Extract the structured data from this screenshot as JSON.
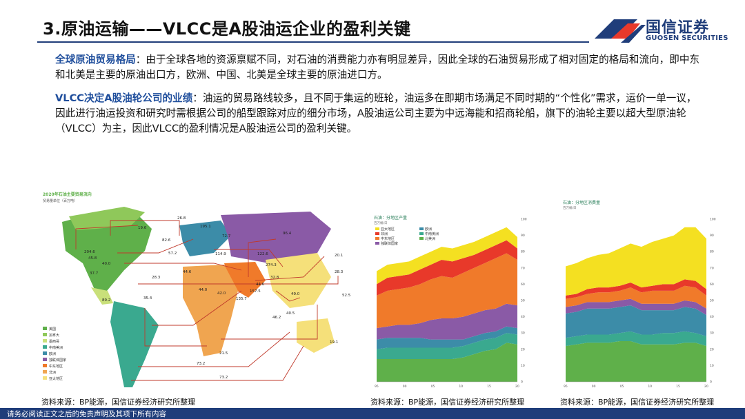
{
  "header": {
    "title": "3.原油运输——VLCC是A股油运企业的盈利关键",
    "logo_cn": "国信证券",
    "logo_en": "GUOSEN SECURITIES"
  },
  "paragraphs": [
    {
      "keyword": "全球原油贸易格局",
      "text": "：由于全球各地的资源禀赋不同，对石油的消费能力亦有明显差异，因此全球的石油贸易形成了相对固定的格局和流向，即中东和北美是主要的原油出口方，欧洲、中国、北美是全球主要的原油进口方。"
    },
    {
      "keyword": "VLCC决定A股油轮公司的业绩",
      "text": "：油运的贸易路线较多，且不同于集运的班轮，油运多在即期市场满足不同时期的“个性化”需求，运价一单一议，因此进行油运投资和研究时需根据公司的船型跟踪对应的细分市场，A股油运公司主要为中远海能和招商轮船，旗下的油轮主要以超大型原油轮（VLCC）为主，因此VLCC的盈利情况是A股油运公司的盈利关键。"
    }
  ],
  "map": {
    "title": "2020年石油主要贸易流向",
    "subtitle": "贸易量单位（百万吨）",
    "flows": [
      "26.8",
      "19.6",
      "195.1",
      "82.6",
      "72.7",
      "96.4",
      "204.6",
      "45.8",
      "40.0",
      "57.2",
      "114.9",
      "122.6",
      "20.1",
      "37.7",
      "44.6",
      "274.3",
      "28.3",
      "28.3",
      "44.6",
      "32.8",
      "89.2",
      "44.0",
      "42.0",
      "157.5",
      "49.0",
      "35.4",
      "135.7",
      "52.5",
      "46.2",
      "40.5",
      "19.1",
      "21.5",
      "73.2",
      "73.2"
    ],
    "legend": [
      "美国",
      "加拿大",
      "墨西哥",
      "中南美洲",
      "欧洲",
      "独联体国家",
      "中东地区",
      "非洲",
      "亚太地区"
    ],
    "colors": {
      "us": "#5fb04a",
      "canada": "#8fc85a",
      "mexico": "#c9e07a",
      "s_america": "#3aa98f",
      "europe": "#3c8ca8",
      "cis": "#8a5aa6",
      "middle_east": "#f07a2a",
      "africa": "#f0a550",
      "asia": "#f5e07a"
    }
  },
  "chart_production": {
    "title": "石油：分地区产量",
    "unit": "百万桶/日",
    "legend": [
      "亚太地区",
      "欧洲",
      "非洲",
      "中南美洲",
      "中东地区",
      "北美洲",
      "独联体国家"
    ],
    "source": "资料来源：BP能源，国信证券经济研究所整理"
  },
  "chart_consumption": {
    "title": "石油：分地区消费量",
    "unit": "百万桶/日",
    "source": "资料来源：BP能源，国信证券经济研究所整理"
  },
  "chart_data": [
    {
      "type": "area",
      "title": "石油：分地区产量",
      "ylabel": "百万桶/日",
      "x": [
        95,
        97,
        99,
        1,
        3,
        5,
        7,
        9,
        11,
        13,
        15,
        17,
        19,
        20
      ],
      "xticks": [
        "95",
        "00",
        "05",
        "10",
        "15",
        "20"
      ],
      "ylim": [
        0,
        100
      ],
      "yticks": [
        0,
        10,
        20,
        30,
        40,
        50,
        60,
        70,
        80,
        90,
        100
      ],
      "series": [
        {
          "name": "北美洲",
          "color": "#5fb04a",
          "values": [
            14,
            14,
            14,
            14,
            14,
            14,
            14,
            14,
            15,
            17,
            19,
            20,
            24,
            23
          ]
        },
        {
          "name": "中南美洲",
          "color": "#3aa98f",
          "values": [
            6,
            7,
            7,
            7,
            7,
            7,
            7,
            7,
            7,
            7,
            7,
            7,
            6,
            6
          ]
        },
        {
          "name": "欧洲",
          "color": "#3c8ca8",
          "values": [
            6,
            6,
            6,
            6,
            6,
            5,
            5,
            5,
            4,
            4,
            4,
            4,
            4,
            4
          ]
        },
        {
          "name": "独联体国家",
          "color": "#8a5aa6",
          "values": [
            7,
            7,
            8,
            8,
            9,
            12,
            13,
            13,
            14,
            14,
            14,
            14,
            14,
            14
          ]
        },
        {
          "name": "中东地区",
          "color": "#f07a2a",
          "values": [
            20,
            22,
            22,
            23,
            24,
            25,
            26,
            25,
            27,
            28,
            29,
            31,
            31,
            28
          ]
        },
        {
          "name": "非洲",
          "color": "#e8392a",
          "values": [
            7,
            8,
            8,
            8,
            9,
            9,
            10,
            10,
            9,
            8,
            8,
            8,
            8,
            7
          ]
        },
        {
          "name": "亚太地区",
          "color": "#f4e021",
          "values": [
            8,
            8,
            8,
            8,
            8,
            8,
            8,
            8,
            8,
            8,
            8,
            8,
            8,
            7
          ]
        }
      ]
    },
    {
      "type": "area",
      "title": "石油：分地区消费量",
      "ylabel": "百万桶/日",
      "x": [
        95,
        97,
        99,
        1,
        3,
        5,
        7,
        9,
        11,
        13,
        15,
        17,
        19,
        20
      ],
      "xticks": [
        "95",
        "00",
        "05",
        "10",
        "15",
        "20"
      ],
      "ylim": [
        0,
        100
      ],
      "yticks": [
        0,
        10,
        20,
        30,
        40,
        50,
        60,
        70,
        80,
        90,
        100
      ],
      "series": [
        {
          "name": "北美洲",
          "color": "#5fb04a",
          "values": [
            22,
            23,
            24,
            24,
            24,
            25,
            25,
            23,
            23,
            23,
            23,
            24,
            24,
            22
          ]
        },
        {
          "name": "中南美洲",
          "color": "#3aa98f",
          "values": [
            5,
            5,
            5,
            5,
            5,
            5,
            6,
            6,
            6,
            7,
            7,
            7,
            6,
            6
          ]
        },
        {
          "name": "欧洲",
          "color": "#3c8ca8",
          "values": [
            15,
            15,
            16,
            16,
            16,
            16,
            16,
            15,
            15,
            14,
            14,
            15,
            15,
            13
          ]
        },
        {
          "name": "独联体国家",
          "color": "#8a5aa6",
          "values": [
            4,
            4,
            4,
            4,
            4,
            4,
            4,
            4,
            4,
            4,
            4,
            4,
            4,
            4
          ]
        },
        {
          "name": "中东地区",
          "color": "#f07a2a",
          "values": [
            5,
            5,
            5,
            6,
            6,
            6,
            7,
            7,
            8,
            8,
            8,
            9,
            9,
            8
          ]
        },
        {
          "name": "非洲",
          "color": "#e8392a",
          "values": [
            2,
            2,
            3,
            3,
            3,
            3,
            3,
            3,
            3,
            4,
            4,
            4,
            4,
            4
          ]
        },
        {
          "name": "亚太地区",
          "color": "#f4e021",
          "values": [
            18,
            19,
            19,
            20,
            21,
            23,
            24,
            25,
            27,
            28,
            30,
            32,
            33,
            31
          ]
        }
      ]
    }
  ],
  "sources": {
    "map": "资料来源：BP能源，国信证券经济研究所整理",
    "production": "资料来源：BP能源，国信证券经济研究所整理",
    "consumption": "资料来源：BP能源，国信证券经济研究所整理"
  },
  "footer": "请务必阅读正文之后的免责声明及其项下所有内容"
}
